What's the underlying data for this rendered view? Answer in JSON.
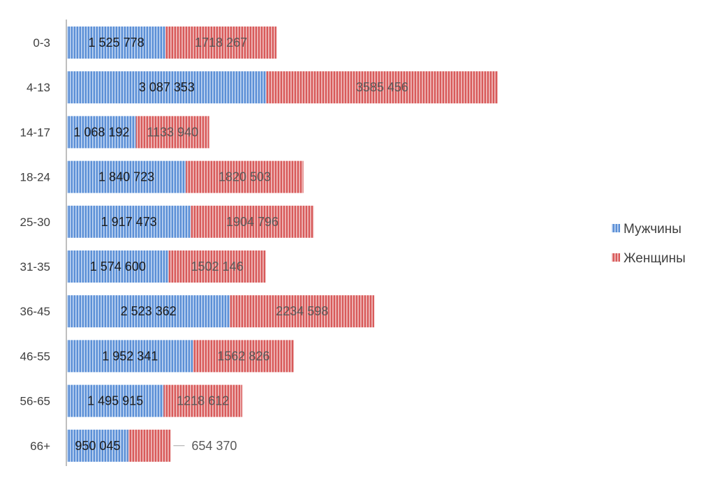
{
  "chart_data": {
    "type": "bar",
    "orientation": "horizontal",
    "stacked": true,
    "title": "",
    "xlabel": "",
    "ylabel": "",
    "categories": [
      "0-3",
      "4-13",
      "14-17",
      "18-24",
      "25-30",
      "31-35",
      "36-45",
      "46-55",
      "56-65",
      "66+"
    ],
    "series": [
      {
        "name": "Мужчины",
        "color": "#5b8fd6",
        "values": [
          1525778,
          3087353,
          1068192,
          1840723,
          1917473,
          1574600,
          2523362,
          1952341,
          1495915,
          950045
        ],
        "labels": [
          "1 525 778",
          "3 087 353",
          "1 068 192",
          "1 840 723",
          "1 917 473",
          "1 574 600",
          "2 523 362",
          "1 952 341",
          "1 495 915",
          "950 045"
        ]
      },
      {
        "name": "Женщины",
        "color": "#d85a5a",
        "values": [
          1718267,
          3585456,
          1133940,
          1820503,
          1904796,
          1502146,
          2234598,
          1562826,
          1218612,
          654370
        ],
        "labels": [
          "1718 267",
          "3585 456",
          "1133 940",
          "1820 503",
          "1904 796",
          "1502 146",
          "2234 598",
          "1562 826",
          "1218 612",
          "654 370"
        ]
      }
    ],
    "xlim": [
      0,
      7000000
    ],
    "grid": false,
    "legend_position": "right"
  }
}
